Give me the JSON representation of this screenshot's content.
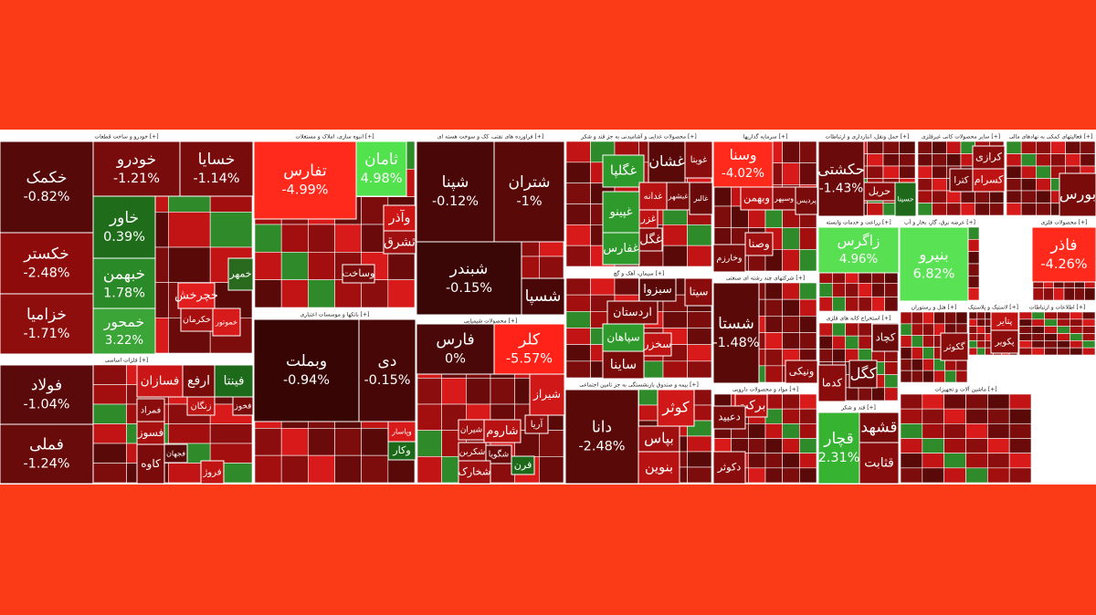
{
  "chart_data": {
    "type": "treemap",
    "groups": [
      {
        "name": "خودرو و ساخت قطعات [+]",
        "tiles": [
          {
            "name": "خکمک",
            "value": -0.82,
            "value_label": "-0.82%",
            "color": "#560909"
          },
          {
            "name": "خکستر",
            "value": -2.48,
            "value_label": "-2.48%",
            "color": "#8e0b0b"
          },
          {
            "name": "خزامیا",
            "value": -1.71,
            "value_label": "-1.71%",
            "color": "#8e0e0e"
          },
          {
            "name": "خودرو",
            "value": -1.21,
            "value_label": "-1.21%",
            "color": "#780b0b"
          },
          {
            "name": "خسایا",
            "value": -1.14,
            "value_label": "-1.14%",
            "color": "#780c0c"
          },
          {
            "name": "خاور",
            "value": 0.39,
            "value_label": "0.39%",
            "color": "#1f6d1a"
          },
          {
            "name": "خبهمن",
            "value": 1.78,
            "value_label": "1.78%",
            "color": "#2b8a28"
          },
          {
            "name": "خمحور",
            "value": 3.22,
            "value_label": "3.22%",
            "color": "#3ba637"
          },
          {
            "name": "خمهر",
            "color": "#2a6a1e"
          },
          {
            "name": "خچرخش",
            "color": "#e11d1d"
          },
          {
            "name": "خکرمان",
            "color": "#a80f0f"
          },
          {
            "name": "خموتور",
            "color": "#d71a1a"
          }
        ]
      },
      {
        "name": "فلزات اساسی [+]",
        "tiles": [
          {
            "name": "فولاد",
            "value": -1.04,
            "value_label": "-1.04%",
            "color": "#5a0a0a"
          },
          {
            "name": "فملی",
            "value": -1.24,
            "value_label": "-1.24%",
            "color": "#6a0b0b"
          },
          {
            "name": "فسازان",
            "color": "#ca1616"
          },
          {
            "name": "ارفع",
            "color": "#7a0b0b"
          },
          {
            "name": "فینتا",
            "color": "#1d6a1a"
          },
          {
            "name": "زنگان",
            "color": "#bd1414"
          },
          {
            "name": "فمراد",
            "color": "#8b0c0c"
          },
          {
            "name": "فسوز",
            "color": "#a80f0f"
          },
          {
            "name": "کاوه",
            "color": "#7b0b0b"
          },
          {
            "name": "فجهان",
            "color": "#5a0909"
          },
          {
            "name": "فخوز",
            "color": "#7a0b0b"
          },
          {
            "name": "فروژ",
            "color": "#c01414"
          }
        ]
      },
      {
        "name": "انبوه سازی، املاک و مستغلات [+]",
        "tiles": [
          {
            "name": "تفارس",
            "value": -4.99,
            "value_label": "-4.99%",
            "color": "#ff2a1c"
          },
          {
            "name": "ثامان",
            "value": 4.98,
            "value_label": "4.98%",
            "color": "#52e24e"
          },
          {
            "name": "وآذر",
            "color": "#cc1515"
          },
          {
            "name": "ثشرق",
            "color": "#a01010"
          },
          {
            "name": "وساخت",
            "color": "#7c0b0b"
          }
        ]
      },
      {
        "name": "بانکها و موسسات اعتباری [+]",
        "tiles": [
          {
            "name": "وبملت",
            "value": -0.94,
            "value_label": "-0.94%",
            "color": "#380505"
          },
          {
            "name": "دی",
            "value": -0.15,
            "value_label": "-0.15%",
            "color": "#470707"
          },
          {
            "name": "وپاسار",
            "color": "#d81a1a"
          },
          {
            "name": "وکار",
            "color": "#1b6a1a"
          }
        ]
      },
      {
        "name": "فراورده های نفتی، کک و سوخت هسته ای [+]",
        "tiles": [
          {
            "name": "شپنا",
            "value": -0.12,
            "value_label": "-0.12%",
            "color": "#4a0707"
          },
          {
            "name": "شتران",
            "value": -1,
            "value_label": "-1%",
            "color": "#5a0909"
          },
          {
            "name": "شبندر",
            "value": -0.15,
            "value_label": "-0.15%",
            "color": "#3a0606"
          },
          {
            "name": "شسپا",
            "color": "#4a0707"
          }
        ]
      },
      {
        "name": "محصولات شیمیایی [+]",
        "tiles": [
          {
            "name": "فارس",
            "value": 0,
            "value_label": "0%",
            "color": "#4b0808"
          },
          {
            "name": "کلر",
            "value": -5.57,
            "value_label": "-5.57%",
            "color": "#ff2218"
          },
          {
            "name": "شیراز",
            "color": "#d01818"
          },
          {
            "name": "شیران",
            "color": "#a30f0f"
          },
          {
            "name": "شاروم",
            "color": "#b81212"
          },
          {
            "name": "شکربن",
            "color": "#8b0c0c"
          },
          {
            "name": "شگویا",
            "color": "#6a0a0a"
          },
          {
            "name": "شخارک",
            "color": "#a01010"
          },
          {
            "name": "آریا",
            "color": "#8b0c0c"
          },
          {
            "name": "فرن",
            "color": "#1d6a1a"
          }
        ]
      },
      {
        "name": "محصولات غذایی و آشامیدنی به جز قند و شکر [+]",
        "tiles": [
          {
            "name": "غویتا",
            "color": "#8b0c0c"
          },
          {
            "name": "غشان",
            "color": "#5a0909"
          },
          {
            "name": "غگلپا",
            "color": "#2f9a2c"
          },
          {
            "name": "غبشهر",
            "color": "#7a0b0b"
          },
          {
            "name": "غدانه",
            "color": "#b81212"
          },
          {
            "name": "غالبر",
            "color": "#6a0a0a"
          },
          {
            "name": "غزر",
            "color": "#c01414"
          },
          {
            "name": "غفارس",
            "color": "#2f9a2c"
          },
          {
            "name": "غپینو",
            "color": "#2f9a2c"
          },
          {
            "name": "غگل",
            "color": "#8b0c0c"
          }
        ]
      },
      {
        "name": "سیمان، آهک و گچ [+]",
        "tiles": [
          {
            "name": "سیتا",
            "color": "#8b0c0c"
          },
          {
            "name": "سبزوا",
            "color": "#5a0909"
          },
          {
            "name": "اردستان",
            "color": "#7a0b0b"
          },
          {
            "name": "سپاهان",
            "color": "#2f9a2c"
          },
          {
            "name": "سخزر",
            "color": "#c01414"
          },
          {
            "name": "ساینا",
            "color": "#7a0b0b"
          }
        ]
      },
      {
        "name": "بیمه و صندوق بازنشستگی به جز تامین اجتماعی [+]",
        "tiles": [
          {
            "name": "دانا",
            "value": -2.48,
            "value_label": "-2.48%",
            "color": "#5a0909"
          },
          {
            "name": "کوثر",
            "color": "#d01818"
          },
          {
            "name": "بپاس",
            "color": "#a01010"
          },
          {
            "name": "بنوین",
            "color": "#b81212"
          }
        ]
      },
      {
        "name": "سرمایه گذاریها [+]",
        "tiles": [
          {
            "name": "وسنا",
            "value": -4.02,
            "value_label": "-4.02%",
            "color": "#ff2a1c"
          },
          {
            "name": "وبهمن",
            "color": "#c01414"
          },
          {
            "name": "وسپهر",
            "color": "#8b0c0c"
          },
          {
            "name": "پردیس",
            "color": "#7a0b0b"
          },
          {
            "name": "وصنا",
            "color": "#a01010"
          },
          {
            "name": "وخارزم",
            "color": "#7a0b0b"
          }
        ]
      },
      {
        "name": "شرکتهای چند رشته ای صنعتی [+]",
        "tiles": [
          {
            "name": "شستا",
            "value": -1.48,
            "value_label": "-1.48%",
            "color": "#5a0909"
          },
          {
            "name": "ونیکی",
            "color": "#8b0c0c"
          }
        ]
      },
      {
        "name": "مواد و محصولات دارویی [+]",
        "tiles": [
          {
            "name": "برکت",
            "color": "#b81212"
          },
          {
            "name": "دعبید",
            "color": "#7a0b0b"
          },
          {
            "name": "دکوثر",
            "color": "#8b0c0c"
          }
        ]
      },
      {
        "name": "حمل ونقل، انبارداری و ارتباطات [+]",
        "tiles": [
          {
            "name": "حکشتی",
            "value": -1.43,
            "value_label": "-1.43%",
            "color": "#6a0a0a"
          },
          {
            "name": "حسینا",
            "color": "#1f6a1a"
          },
          {
            "name": "حریل",
            "color": "#8b0c0c"
          }
        ]
      },
      {
        "name": "زراعت و خدمات وابسته [+]",
        "tiles": [
          {
            "name": "زاگرس",
            "value": 4.96,
            "value_label": "4.96%",
            "color": "#58e052"
          }
        ]
      },
      {
        "name": "استخراج کانه های فلزی [+]",
        "tiles": [
          {
            "name": "کچاد",
            "color": "#6a0a0a"
          },
          {
            "name": "کگل",
            "color": "#6a0a0a"
          },
          {
            "name": "کدما",
            "color": "#8b0c0c"
          }
        ]
      },
      {
        "name": "قند و شکر [+]",
        "tiles": [
          {
            "name": "قچار",
            "value": 2.31,
            "value_label": "2.31%",
            "color": "#35b331"
          },
          {
            "name": "قشهد",
            "color": "#7a0b0b"
          },
          {
            "name": "قثابت",
            "color": "#8b0c0c"
          }
        ]
      },
      {
        "name": "سایر محصولات کانی غیرفلزی [+]",
        "tiles": [
          {
            "name": "کرازی",
            "color": "#8b0c0c"
          },
          {
            "name": "کسرام",
            "color": "#c01414"
          },
          {
            "name": "کترا",
            "color": "#7a0b0b"
          }
        ]
      },
      {
        "name": "فعالیتهای کمکی به نهادهای مالی [+]",
        "tiles": [
          {
            "name": "بورس",
            "color": "#7a0b0b"
          }
        ]
      },
      {
        "name": "عرضه برق، گاز، بخار و آب [+]",
        "tiles": [
          {
            "name": "بنیرو",
            "value": 6.82,
            "value_label": "6.82%",
            "color": "#5ae255"
          }
        ]
      },
      {
        "name": "محصولات فلزی [+]",
        "tiles": [
          {
            "name": "فاذر",
            "value": -4.26,
            "value_label": "-4.26%",
            "color": "#ff2a1c"
          }
        ]
      },
      {
        "name": "هتل و رستوران [+]",
        "tiles": [
          {
            "name": "گکوثر",
            "color": "#8b0c0c"
          }
        ]
      },
      {
        "name": "لاستیک و پلاستیک [+]",
        "tiles": [
          {
            "name": "پتایر",
            "color": "#c01414"
          },
          {
            "name": "پکویر",
            "color": "#8b0c0c"
          }
        ]
      },
      {
        "name": "اطلاعات و ارتباطات [+]",
        "tiles": []
      },
      {
        "name": "ماشین آلات و تجهیزات [+]",
        "tiles": []
      }
    ]
  }
}
